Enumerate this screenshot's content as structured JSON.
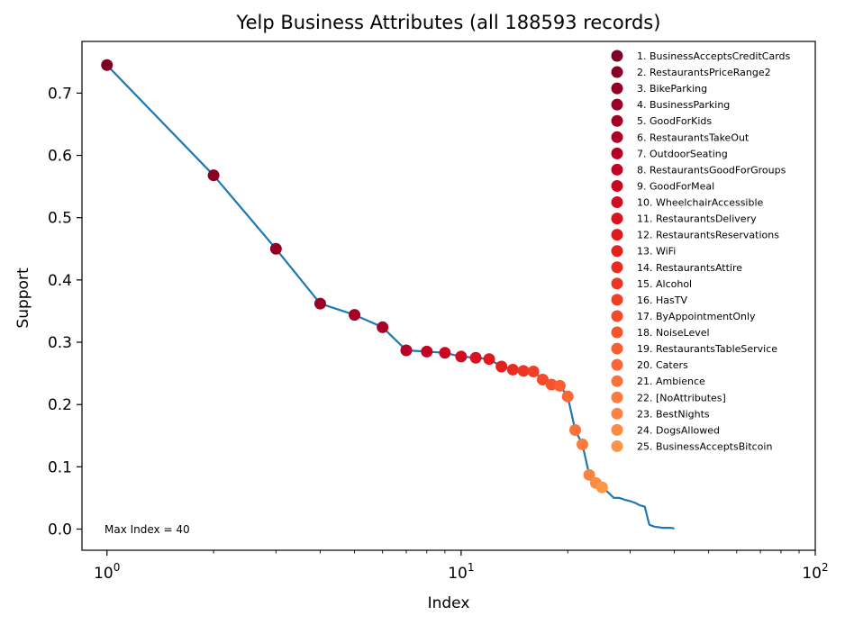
{
  "chart_data": {
    "type": "line",
    "title": "Yelp Business Attributes (all 188593 records)",
    "xlabel": "Index",
    "ylabel": "Support",
    "xscale": "log",
    "xlim": [
      0.85,
      100
    ],
    "ylim": [
      -0.034,
      0.783
    ],
    "x_ticks": [
      {
        "value": 1,
        "base": "10",
        "exp": "0"
      },
      {
        "value": 10,
        "base": "10",
        "exp": "1"
      },
      {
        "value": 100,
        "base": "10",
        "exp": "2"
      }
    ],
    "y_ticks": [
      "0.0",
      "0.1",
      "0.2",
      "0.3",
      "0.4",
      "0.5",
      "0.6",
      "0.7"
    ],
    "annotation": "Max Index = 40",
    "line_color": "#1f77b4",
    "series": [
      {
        "x": [
          1,
          2,
          3,
          4,
          5,
          6,
          7,
          8,
          9,
          10,
          11,
          12,
          13,
          14,
          15,
          16,
          17,
          18,
          19,
          20,
          21,
          22,
          23,
          24,
          25,
          26,
          27,
          28,
          29,
          30,
          31,
          32,
          33,
          34,
          35,
          36,
          37,
          38,
          39,
          40
        ],
        "y": [
          0.745,
          0.568,
          0.45,
          0.362,
          0.344,
          0.324,
          0.287,
          0.285,
          0.283,
          0.277,
          0.275,
          0.273,
          0.261,
          0.256,
          0.254,
          0.253,
          0.24,
          0.232,
          0.23,
          0.213,
          0.159,
          0.136,
          0.087,
          0.074,
          0.067,
          0.059,
          0.05,
          0.05,
          0.047,
          0.045,
          0.042,
          0.038,
          0.036,
          0.007,
          0.004,
          0.003,
          0.002,
          0.002,
          0.002,
          0.001
        ]
      }
    ],
    "legend": {
      "placement": "upper right",
      "items": [
        {
          "label": "1. BusinessAcceptsCreditCards",
          "color": "#7f0025"
        },
        {
          "label": "2. RestaurantsPriceRange2",
          "color": "#880025"
        },
        {
          "label": "3. BikeParking",
          "color": "#920026"
        },
        {
          "label": "4. BusinessParking",
          "color": "#9b0026"
        },
        {
          "label": "5. GoodForKids",
          "color": "#a40026"
        },
        {
          "label": "6. RestaurantsTakeOut",
          "color": "#ad0026"
        },
        {
          "label": "7. OutdoorSeating",
          "color": "#b70026"
        },
        {
          "label": "8. RestaurantsGoodForGroups",
          "color": "#c00225"
        },
        {
          "label": "9. GoodForMeal",
          "color": "#c90823"
        },
        {
          "label": "10. WheelchairAccessible",
          "color": "#d10d21"
        },
        {
          "label": "11. RestaurantsDelivery",
          "color": "#d9131f"
        },
        {
          "label": "12. RestaurantsReservations",
          "color": "#e0191d"
        },
        {
          "label": "13. WiFi",
          "color": "#e5211e"
        },
        {
          "label": "14. RestaurantsAttire",
          "color": "#e92b22"
        },
        {
          "label": "15. Alcohol",
          "color": "#ed3524"
        },
        {
          "label": "16. HasTV",
          "color": "#f03f27"
        },
        {
          "label": "17. ByAppointmentOnly",
          "color": "#f4492a"
        },
        {
          "label": "18. NoiseLevel",
          "color": "#f7532d"
        },
        {
          "label": "19. RestaurantsTableService",
          "color": "#fa5d2f"
        },
        {
          "label": "20. Caters",
          "color": "#fb6734"
        },
        {
          "label": "21. Ambience",
          "color": "#fc7139"
        },
        {
          "label": "22. [NoAttributes]",
          "color": "#fc7a3d"
        },
        {
          "label": "23. BestNights",
          "color": "#fc8341"
        },
        {
          "label": "24. DogsAllowed",
          "color": "#fc8b43"
        },
        {
          "label": "25. BusinessAcceptsBitcoin",
          "color": "#fd9446"
        }
      ]
    }
  }
}
